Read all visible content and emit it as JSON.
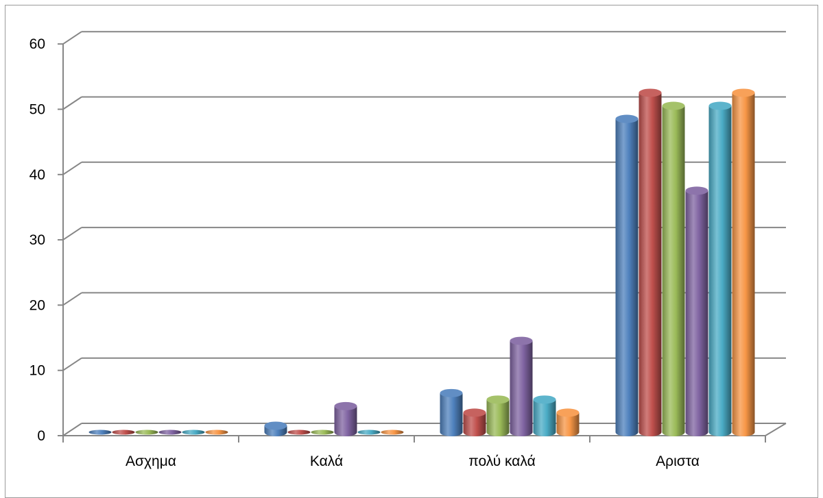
{
  "chart_data": {
    "type": "bar",
    "title": "",
    "xlabel": "",
    "ylabel": "",
    "ylim": [
      0,
      60
    ],
    "yticks": [
      0,
      10,
      20,
      30,
      40,
      50,
      60
    ],
    "categories": [
      "Ασχημα",
      "Καλά",
      "πολύ καλά",
      "Αριστα"
    ],
    "series": [
      {
        "color": "#4f81bd",
        "values": [
          0,
          1,
          6,
          48
        ]
      },
      {
        "color": "#c0504d",
        "values": [
          0,
          0,
          3,
          52
        ]
      },
      {
        "color": "#9bbb59",
        "values": [
          0,
          0,
          5,
          50
        ]
      },
      {
        "color": "#8064a2",
        "values": [
          0,
          4,
          14,
          37
        ]
      },
      {
        "color": "#4bacc6",
        "values": [
          0,
          0,
          5,
          50
        ]
      },
      {
        "color": "#f79646",
        "values": [
          0,
          0,
          3,
          52
        ]
      }
    ],
    "grid": true,
    "legend": "none"
  }
}
